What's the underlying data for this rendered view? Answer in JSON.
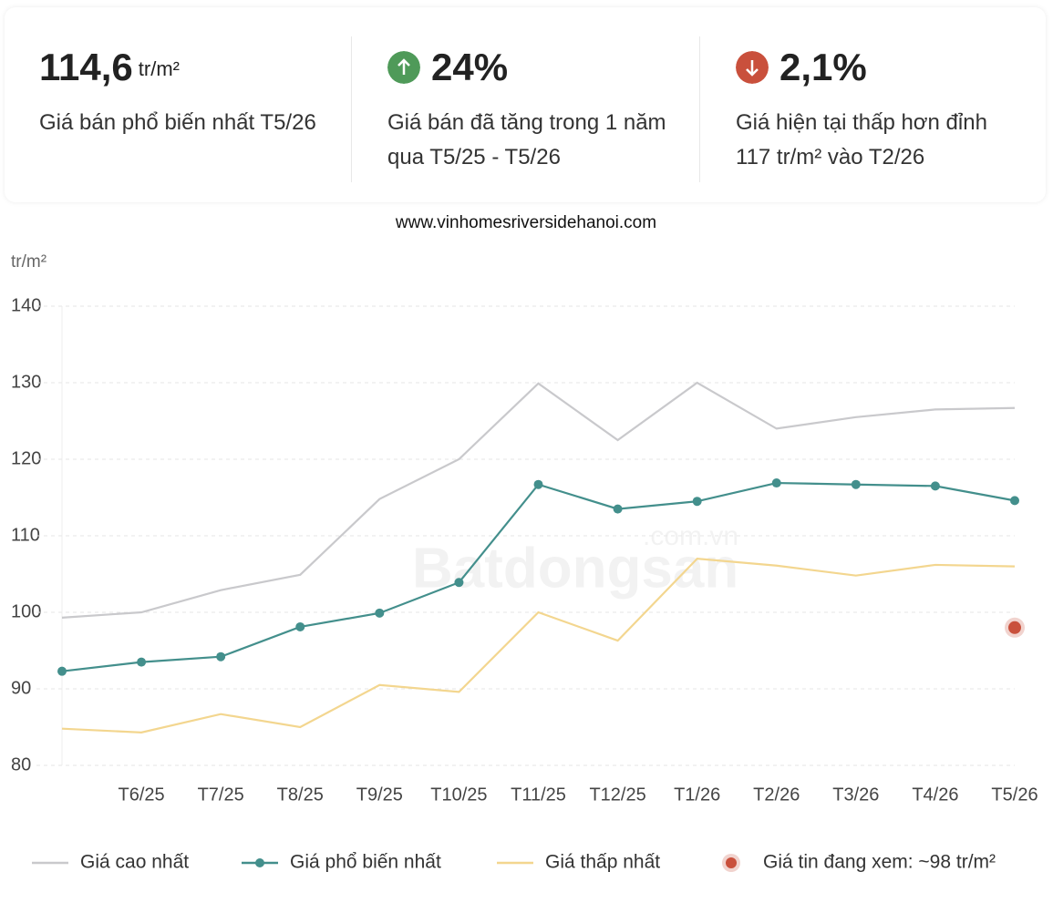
{
  "cards": [
    {
      "value": "114,6",
      "unit": "tr/m²",
      "description": "Giá bán phổ biến nhất T5/26"
    },
    {
      "icon": "up",
      "value": "24%",
      "description": "Giá bán đã tăng trong 1 năm qua T5/25 - T5/26"
    },
    {
      "icon": "down",
      "value": "2,1%",
      "description": "Giá hiện tại thấp hơn đỉnh 117 tr/m² vào T2/26"
    }
  ],
  "source": "www.vinhomesriversidehanoi.com",
  "watermark": {
    "brand": "Batdongsan",
    "domain": ".com.vn"
  },
  "chart_data": {
    "type": "line",
    "y_label": "tr/m²",
    "categories": [
      null,
      "T6/25",
      "T7/25",
      "T8/25",
      "T9/25",
      "T10/25",
      "T11/25",
      "T12/25",
      "T1/26",
      "T2/26",
      "T3/26",
      "T4/26",
      "T5/26"
    ],
    "series": [
      {
        "name": "Giá cao nhất",
        "color": "#c9c9cc",
        "markers": false,
        "values": [
          99.3,
          100,
          102.9,
          104.9,
          114.8,
          120,
          129.9,
          122.5,
          130,
          124,
          125.5,
          126.5,
          126.7
        ]
      },
      {
        "name": "Giá phổ biến nhất",
        "color": "#438f8c",
        "markers": true,
        "values": [
          92.3,
          93.5,
          94.2,
          98.1,
          99.9,
          103.9,
          116.7,
          113.5,
          114.5,
          116.9,
          116.7,
          116.5,
          114.6
        ]
      },
      {
        "name": "Giá thấp nhất",
        "color": "#f3d68f",
        "markers": false,
        "values": [
          84.8,
          84.3,
          86.7,
          85,
          90.5,
          89.6,
          100,
          96.3,
          107,
          106.1,
          104.8,
          106.2,
          106
        ]
      }
    ],
    "highlight": {
      "name": "Giá tin đang xem: ~98 tr/m²",
      "value": 98,
      "category": 12,
      "color": "#c9503c"
    },
    "ylim": [
      80,
      140
    ],
    "yticks": [
      80,
      90,
      100,
      110,
      120,
      130,
      140
    ],
    "grid": true
  }
}
